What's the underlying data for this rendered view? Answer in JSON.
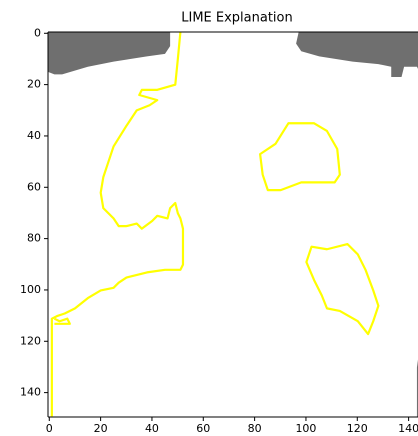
{
  "chart_data": {
    "type": "image",
    "title": "LIME Explanation",
    "xlim": [
      -0.5,
      149.5
    ],
    "xticks": [
      0,
      20,
      40,
      60,
      80,
      100,
      120,
      140
    ],
    "ylim": [
      149.5,
      -0.5
    ],
    "yticks": [
      0,
      20,
      40,
      60,
      80,
      100,
      120,
      140
    ]
  }
}
